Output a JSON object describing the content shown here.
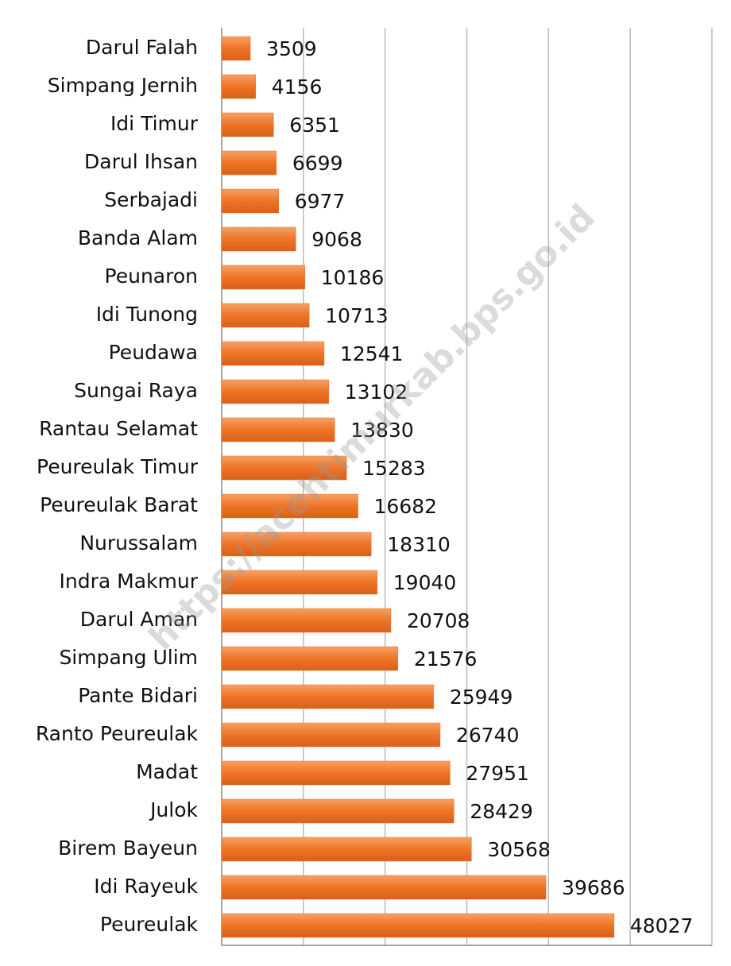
{
  "chart_data": {
    "type": "bar",
    "orientation": "horizontal",
    "categories": [
      "Darul Falah",
      "Simpang Jernih",
      "Idi Timur",
      "Darul Ihsan",
      "Serbajadi",
      "Banda Alam",
      "Peunaron",
      "Idi Tunong",
      "Peudawa",
      "Sungai Raya",
      "Rantau Selamat",
      "Peureulak Timur",
      "Peureulak Barat",
      "Nurussalam",
      "Indra Makmur",
      "Darul Aman",
      "Simpang Ulim",
      "Pante Bidari",
      "Ranto Peureulak",
      "Madat",
      "Julok",
      "Birem Bayeun",
      "Idi Rayeuk",
      "Peureulak"
    ],
    "values": [
      3509,
      4156,
      6351,
      6699,
      6977,
      9068,
      10186,
      10713,
      12541,
      13102,
      13830,
      15283,
      16682,
      18310,
      19040,
      20708,
      21576,
      25949,
      26740,
      27951,
      28429,
      30568,
      39686,
      48027
    ],
    "color": "#ef7425",
    "xlim": [
      0,
      60000
    ],
    "xticks": [
      0,
      10000,
      20000,
      30000,
      40000,
      50000,
      60000
    ],
    "grid": true,
    "watermark": "https://acehtimurkab.bps.go.id"
  }
}
